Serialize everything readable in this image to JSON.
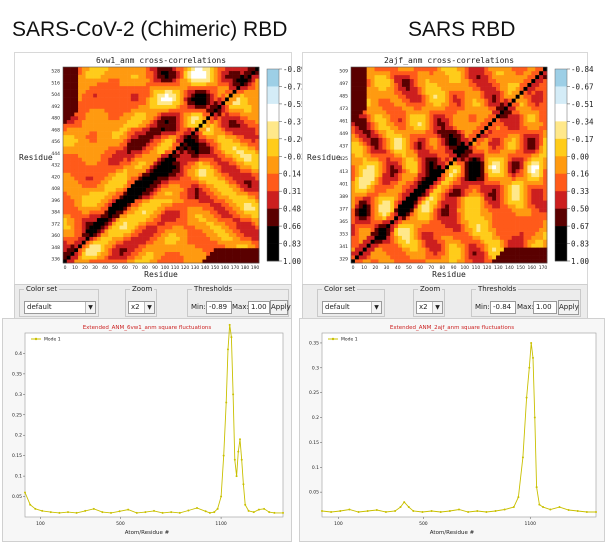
{
  "titles": {
    "left": "SARS-CoV-2 (Chimeric) RBD",
    "right": "SARS RBD"
  },
  "colors": {
    "scale": [
      "#000000",
      "#5a0000",
      "#cc1f1f",
      "#ff5a1a",
      "#ff9a10",
      "#ffcc1a",
      "#ffe88a",
      "#ffffff",
      "#d4ecf7",
      "#9dcfe6"
    ],
    "line": "#c9c000",
    "title_red": "#cc2222"
  },
  "controls": [
    {
      "color_set_label": "Color set",
      "color_set_value": "default",
      "zoom_label": "Zoom",
      "zoom_value": "x2",
      "thresholds_label": "Thresholds",
      "min_label": "Min:",
      "min_value": "-0.89",
      "max_label": "Max:",
      "max_value": "1.00",
      "apply_label": "Apply"
    },
    {
      "color_set_label": "Color set",
      "color_set_value": "default",
      "zoom_label": "Zoom",
      "zoom_value": "x2",
      "thresholds_label": "Thresholds",
      "min_label": "Min:",
      "min_value": "-0.84",
      "max_label": "Max:",
      "max_value": "1.00",
      "apply_label": "Apply"
    }
  ],
  "chart_data": [
    {
      "type": "heatmap",
      "title": "6vw1_anm cross-correlations",
      "xlabel": "Residue",
      "ylabel": "Residue",
      "x_ticks": [
        "0",
        "10",
        "20",
        "30",
        "40",
        "50",
        "60",
        "70",
        "80",
        "90",
        "100",
        "110",
        "120",
        "130",
        "140",
        "150",
        "160",
        "170",
        "180",
        "190"
      ],
      "y_ticks": [
        "528",
        "516",
        "504",
        "492",
        "480",
        "468",
        "456",
        "444",
        "432",
        "420",
        "408",
        "396",
        "384",
        "372",
        "360",
        "348",
        "336"
      ],
      "colorbar": [
        "-0.89",
        "-0.72",
        "-0.55",
        "-0.37",
        "-0.20",
        "-0.03",
        "0.14",
        "0.31",
        "0.48",
        "0.66",
        "0.83",
        "1.00"
      ],
      "range": [
        -0.89,
        1.0
      ],
      "seed": 7,
      "n": 52
    },
    {
      "type": "heatmap",
      "title": "2ajf_anm cross-correlations",
      "xlabel": "Residue",
      "ylabel": "Residue",
      "x_ticks": [
        "0",
        "10",
        "20",
        "30",
        "40",
        "50",
        "60",
        "70",
        "80",
        "90",
        "100",
        "110",
        "120",
        "130",
        "140",
        "150",
        "160",
        "170"
      ],
      "y_ticks": [
        "509",
        "497",
        "485",
        "473",
        "461",
        "449",
        "437",
        "425",
        "413",
        "401",
        "389",
        "377",
        "365",
        "353",
        "341",
        "329"
      ],
      "colorbar": [
        "-0.84",
        "-0.67",
        "-0.51",
        "-0.34",
        "-0.17",
        "0.00",
        "0.16",
        "0.33",
        "0.50",
        "0.67",
        "0.83",
        "1.00"
      ],
      "range": [
        -0.84,
        1.0
      ],
      "seed": 13,
      "n": 50
    },
    {
      "type": "line",
      "title": "Extended_ANM_6vw1_anm square fluctuations",
      "xlabel": "Atom/Residue #",
      "legend": "Mode 1",
      "x_ticks": [
        "100",
        "500",
        "1100"
      ],
      "y_ticks": [
        "0.05",
        "0.1",
        "0.15",
        "0.2",
        "0.25",
        "0.3",
        "0.35",
        "0.4"
      ],
      "ylim": [
        0,
        0.45
      ],
      "series": [
        {
          "name": "Mode 1",
          "points": [
            [
              0,
              0.06
            ],
            [
              6,
              0.03
            ],
            [
              12,
              0.02
            ],
            [
              20,
              0.015
            ],
            [
              30,
              0.012
            ],
            [
              40,
              0.01
            ],
            [
              50,
              0.012
            ],
            [
              60,
              0.01
            ],
            [
              70,
              0.015
            ],
            [
              80,
              0.02
            ],
            [
              90,
              0.012
            ],
            [
              100,
              0.01
            ],
            [
              110,
              0.014
            ],
            [
              120,
              0.018
            ],
            [
              130,
              0.01
            ],
            [
              140,
              0.012
            ],
            [
              150,
              0.015
            ],
            [
              160,
              0.01
            ],
            [
              170,
              0.012
            ],
            [
              180,
              0.01
            ],
            [
              190,
              0.016
            ],
            [
              200,
              0.022
            ],
            [
              210,
              0.014
            ],
            [
              215,
              0.01
            ],
            [
              220,
              0.012
            ],
            [
              224,
              0.02
            ],
            [
              228,
              0.05
            ],
            [
              231,
              0.15
            ],
            [
              234,
              0.28
            ],
            [
              236,
              0.41
            ],
            [
              238,
              0.47
            ],
            [
              240,
              0.44
            ],
            [
              242,
              0.3
            ],
            [
              244,
              0.14
            ],
            [
              246,
              0.1
            ],
            [
              248,
              0.16
            ],
            [
              250,
              0.19
            ],
            [
              252,
              0.14
            ],
            [
              254,
              0.08
            ],
            [
              256,
              0.03
            ],
            [
              260,
              0.015
            ],
            [
              266,
              0.012
            ],
            [
              272,
              0.018
            ],
            [
              278,
              0.02
            ],
            [
              284,
              0.012
            ],
            [
              290,
              0.01
            ],
            [
              300,
              0.01
            ]
          ]
        }
      ]
    },
    {
      "type": "line",
      "title": "Extended_ANM_2ajf_anm square fluctuations",
      "xlabel": "Atom/Residue #",
      "legend": "Mode 1",
      "x_ticks": [
        "100",
        "500",
        "1100"
      ],
      "y_ticks": [
        "0.05",
        "0.1",
        "0.15",
        "0.2",
        "0.25",
        "0.3",
        "0.35"
      ],
      "ylim": [
        0,
        0.37
      ],
      "series": [
        {
          "name": "Mode 1",
          "points": [
            [
              0,
              0.012
            ],
            [
              10,
              0.01
            ],
            [
              20,
              0.012
            ],
            [
              30,
              0.015
            ],
            [
              40,
              0.01
            ],
            [
              50,
              0.012
            ],
            [
              60,
              0.014
            ],
            [
              70,
              0.01
            ],
            [
              80,
              0.012
            ],
            [
              86,
              0.02
            ],
            [
              90,
              0.03
            ],
            [
              95,
              0.02
            ],
            [
              100,
              0.012
            ],
            [
              110,
              0.01
            ],
            [
              120,
              0.012
            ],
            [
              130,
              0.01
            ],
            [
              140,
              0.012
            ],
            [
              150,
              0.015
            ],
            [
              160,
              0.01
            ],
            [
              170,
              0.012
            ],
            [
              180,
              0.01
            ],
            [
              190,
              0.012
            ],
            [
              200,
              0.015
            ],
            [
              210,
              0.02
            ],
            [
              215,
              0.04
            ],
            [
              220,
              0.12
            ],
            [
              224,
              0.24
            ],
            [
              227,
              0.3
            ],
            [
              229,
              0.35
            ],
            [
              231,
              0.32
            ],
            [
              233,
              0.2
            ],
            [
              235,
              0.06
            ],
            [
              238,
              0.025
            ],
            [
              242,
              0.02
            ],
            [
              250,
              0.015
            ],
            [
              260,
              0.02
            ],
            [
              270,
              0.014
            ],
            [
              280,
              0.012
            ],
            [
              290,
              0.01
            ],
            [
              300,
              0.01
            ]
          ]
        }
      ]
    }
  ]
}
